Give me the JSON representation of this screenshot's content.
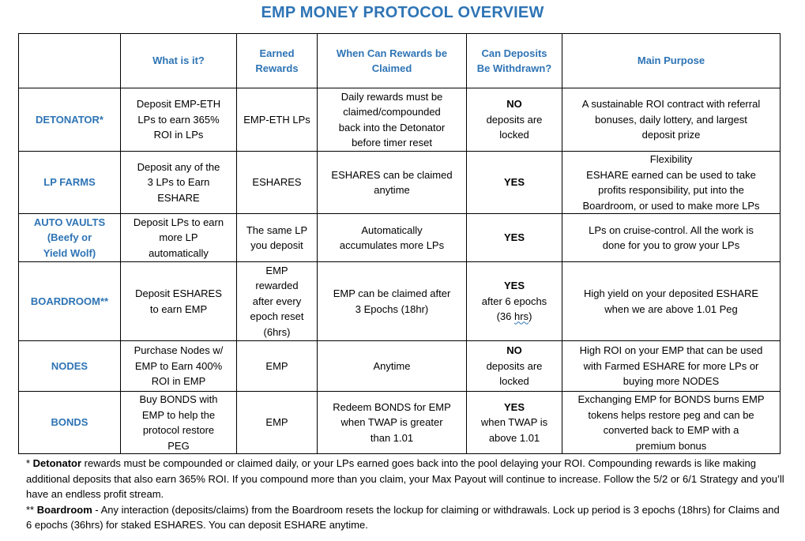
{
  "title": "EMP MONEY PROTOCOL OVERVIEW",
  "headers": {
    "corner": "",
    "what": "What is it?",
    "earned_l1": "Earned",
    "earned_l2": "Rewards",
    "when_l1": "When Can Rewards be",
    "when_l2": "Claimed",
    "withdraw_l1": "Can Deposits",
    "withdraw_l2": "Be Withdrawn?",
    "purpose": "Main Purpose"
  },
  "rows": {
    "detonator": {
      "name": "DETONATOR*",
      "what": [
        "Deposit EMP-ETH",
        "LPs to earn 365%",
        "ROI in LPs"
      ],
      "earned": [
        "EMP-ETH LPs"
      ],
      "when": [
        "Daily rewards must be",
        "claimed/compounded",
        "back into the Detonator",
        "before timer reset"
      ],
      "withdraw_bold": "NO",
      "withdraw": [
        "deposits are",
        "locked"
      ],
      "purpose": [
        "A sustainable ROI contract with referral",
        "bonuses, daily lottery, and largest",
        "deposit prize"
      ]
    },
    "lp_farms": {
      "name": "LP FARMS",
      "what": [
        "Deposit any of the",
        "3 LPs to Earn",
        "ESHARE"
      ],
      "earned": [
        "ESHARES"
      ],
      "when": [
        "ESHARES can be claimed",
        "anytime"
      ],
      "withdraw_bold": "YES",
      "purpose": [
        "Flexibility",
        "ESHARE earned can be used to take",
        "profits responsibility, put into the",
        "Boardroom, or used to make more LPs"
      ]
    },
    "auto_vaults": {
      "name_l1": "AUTO VAULTS",
      "name_l2": "(Beefy or",
      "name_l3": "Yield Wolf)",
      "what": [
        "Deposit LPs to earn",
        "more LP",
        "automatically"
      ],
      "earned": [
        "The same LP",
        "you deposit"
      ],
      "when": [
        "Automatically",
        "accumulates more LPs"
      ],
      "withdraw_bold": "YES",
      "purpose": [
        "LPs on cruise-control. All the work is",
        "done for you to grow your LPs"
      ]
    },
    "boardroom": {
      "name": "BOARDROOM**",
      "what": [
        "Deposit ESHARES",
        "to earn EMP"
      ],
      "earned": [
        "EMP",
        "rewarded",
        "after every",
        "epoch reset",
        "(6hrs)"
      ],
      "when": [
        "EMP can be claimed after",
        "3 Epochs (18hr)"
      ],
      "withdraw_bold": "YES",
      "withdraw_l1": "after 6 epochs",
      "withdraw_l2a": "(36 ",
      "withdraw_l2b": "hrs",
      "withdraw_l2c": ")",
      "purpose": [
        "High yield on your deposited ESHARE",
        "when we are above 1.01 Peg"
      ]
    },
    "nodes": {
      "name": "NODES",
      "what": [
        "Purchase Nodes w/",
        "EMP to Earn 400%",
        "ROI in EMP"
      ],
      "earned": [
        "EMP"
      ],
      "when": [
        "Anytime"
      ],
      "withdraw_bold": "NO",
      "withdraw": [
        "deposits are",
        "locked"
      ],
      "purpose": [
        "High ROI on your EMP that can be used",
        "with Farmed ESHARE for more LPs or",
        "buying more NODES"
      ]
    },
    "bonds": {
      "name": "BONDS",
      "what": [
        "Buy BONDS with",
        "EMP to help the",
        "protocol restore",
        "PEG"
      ],
      "earned": [
        "EMP"
      ],
      "when": [
        "Redeem BONDS for EMP",
        "when TWAP is greater",
        "than 1.01"
      ],
      "withdraw_bold": "YES",
      "withdraw": [
        "when TWAP is",
        "above 1.01"
      ],
      "purpose": [
        "Exchanging EMP for BONDS burns EMP",
        "tokens helps restore peg and can be",
        "converted back to EMP with a",
        "premium bonus"
      ]
    }
  },
  "notes": {
    "detonator_prefix": "* ",
    "detonator_label": "Detonator",
    "detonator_text": " rewards must be compounded or claimed daily, or your LPs earned goes back into the pool delaying your ROI.  Compounding rewards is like making additional deposits that also earn 365% ROI. If you compound more than you claim, your Max Payout will continue to increase. Follow the 5/2 or 6/1 Strategy and you’ll have an endless profit stream.",
    "boardroom_prefix": "** ",
    "boardroom_label": "Boardroom",
    "boardroom_text": " - Any interaction (deposits/claims) from the Boardroom resets the lockup for claiming or withdrawals. Lock up period is 3 epochs (18hrs) for Claims and 6 epochs (36hrs) for staked ESHARES.  You can deposit ESHARE anytime."
  },
  "colors": {
    "accent": "#2e74b5",
    "border": "#000000"
  }
}
